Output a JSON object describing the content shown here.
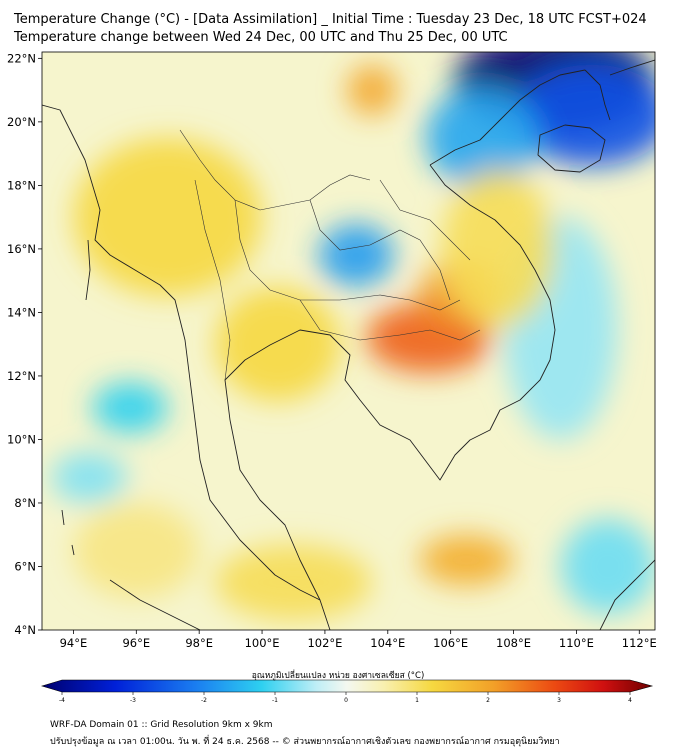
{
  "header": {
    "title_line1": "Temperature Change (°C) - [Data Assimilation] _ Initial Time : Tuesday 23 Dec, 18 UTC FCST+024",
    "title_line2": "Temperature change between Wed 24 Dec, 00 UTC and Thu 25 Dec, 00 UTC"
  },
  "map": {
    "lat_labels": [
      "22°N",
      "20°N",
      "18°N",
      "16°N",
      "14°N",
      "12°N",
      "10°N",
      "8°N",
      "6°N",
      "4°N"
    ],
    "lat_values": [
      22,
      20,
      18,
      16,
      14,
      12,
      10,
      8,
      6,
      4
    ],
    "lon_labels": [
      "94°E",
      "96°E",
      "98°E",
      "100°E",
      "102°E",
      "104°E",
      "106°E",
      "108°E",
      "110°E",
      "112°E"
    ],
    "lon_values": [
      94,
      96,
      98,
      100,
      102,
      104,
      106,
      108,
      110,
      112
    ],
    "lon_range": [
      93,
      112.5
    ],
    "lat_range": [
      4,
      22.2
    ],
    "anomalies": [
      {
        "lon": 109.3,
        "lat": 21.3,
        "value": -4.0,
        "rx": 3.2,
        "ry": 1.6
      },
      {
        "lon": 110.5,
        "lat": 20.2,
        "value": -2.5,
        "rx": 2.5,
        "ry": 1.6
      },
      {
        "lon": 107.0,
        "lat": 19.5,
        "value": -1.6,
        "rx": 1.8,
        "ry": 1.6
      },
      {
        "lon": 103.0,
        "lat": 15.8,
        "value": -1.7,
        "rx": 1.2,
        "ry": 1.0
      },
      {
        "lon": 95.8,
        "lat": 11.0,
        "value": -1.2,
        "rx": 1.2,
        "ry": 0.8
      },
      {
        "lon": 94.5,
        "lat": 8.8,
        "value": -0.8,
        "rx": 1.2,
        "ry": 0.8
      },
      {
        "lon": 109.5,
        "lat": 13.5,
        "value": -0.7,
        "rx": 1.8,
        "ry": 3.5
      },
      {
        "lon": 111.0,
        "lat": 6.0,
        "value": -0.9,
        "rx": 1.5,
        "ry": 1.5
      },
      {
        "lon": 105.3,
        "lat": 13.2,
        "value": 2.4,
        "rx": 2.0,
        "ry": 1.1
      },
      {
        "lon": 106.3,
        "lat": 14.6,
        "value": 1.9,
        "rx": 1.3,
        "ry": 1.0
      },
      {
        "lon": 103.5,
        "lat": 21.0,
        "value": 1.7,
        "rx": 0.8,
        "ry": 0.8
      },
      {
        "lon": 106.5,
        "lat": 6.2,
        "value": 1.6,
        "rx": 1.5,
        "ry": 0.8
      },
      {
        "lon": 97.0,
        "lat": 17.0,
        "value": 1.0,
        "rx": 3.0,
        "ry": 2.5
      },
      {
        "lon": 100.5,
        "lat": 13.0,
        "value": 1.0,
        "rx": 2.0,
        "ry": 1.8
      },
      {
        "lon": 101.0,
        "lat": 5.5,
        "value": 0.9,
        "rx": 2.5,
        "ry": 1.2
      },
      {
        "lon": 96.0,
        "lat": 6.5,
        "value": 0.7,
        "rx": 2.0,
        "ry": 1.5
      },
      {
        "lon": 107.5,
        "lat": 16.0,
        "value": 0.9,
        "rx": 1.8,
        "ry": 2.5
      }
    ]
  },
  "colorbar": {
    "label": "อุณหภูมิเปลี่ยนแปลง หน่วย องศาเซลเซียส (°C)",
    "tick_labels": [
      "-4",
      "-3",
      "-2",
      "-1",
      "0",
      "1",
      "2",
      "3",
      "4"
    ],
    "tick_values": [
      -4,
      -3,
      -2,
      -1,
      0,
      1,
      2,
      3,
      4
    ],
    "range": [
      -4,
      4
    ]
  },
  "footer": {
    "line1": "WRF-DA Domain 01 :: Grid Resolution 9km x 9km",
    "line2": "ปรับปรุงข้อมูล ณ เวลา 01:00น. วัน พ. ที่ 24 ธ.ค. 2568 -- © ส่วนพยากรณ์อากาศเชิงตัวเลข กองพยากรณ์อากาศ กรมอุตุนิยมวิทยา"
  }
}
